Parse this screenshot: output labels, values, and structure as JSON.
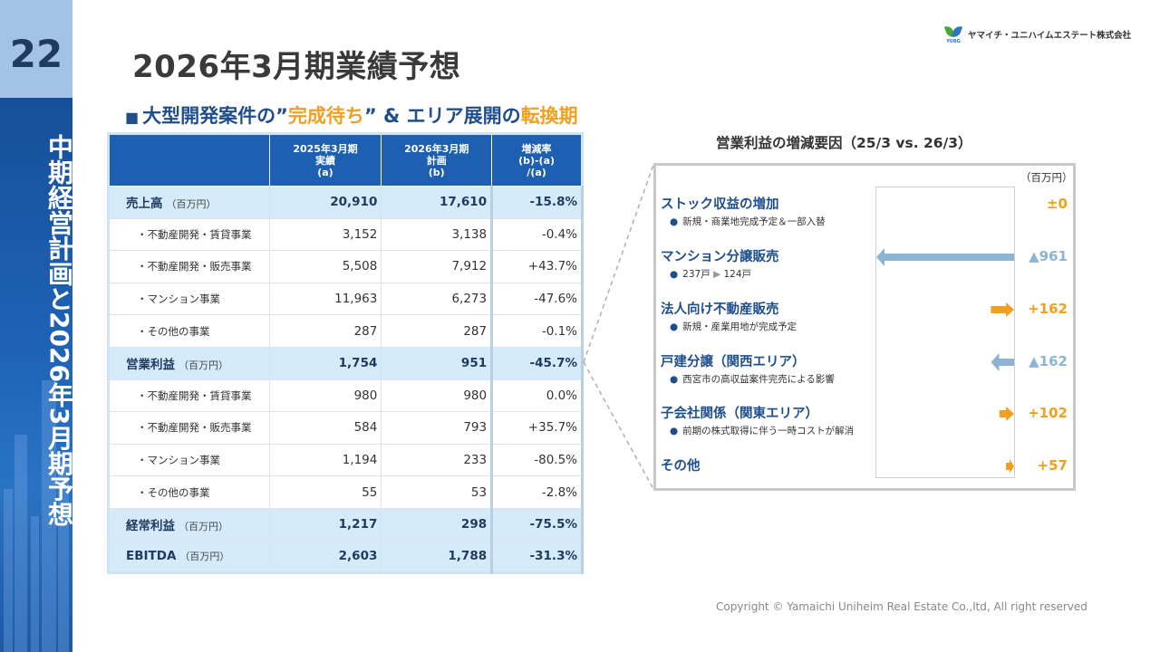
{
  "slide": {
    "page_number": "22",
    "side_title": "中期経営計画と2026年3月期予想",
    "title": "2026年3月期業績予想",
    "company": "ヤマイチ・ユニハイムエステート株式会社",
    "logo_text": "YUBG",
    "copyright": "Copyright © Yamaichi Uniheim Real Estate Co.,ltd, All right reserved"
  },
  "subtitle": {
    "marker": "■",
    "part1": "大型開発案件の”",
    "hl1": "完成待ち",
    "part2": "” & エリア展開の",
    "hl2": "転換期"
  },
  "table": {
    "headers": [
      {
        "l1": "2025年3月期",
        "l2": "実績",
        "l3": "(a)"
      },
      {
        "l1": "2026年3月期",
        "l2": "計画",
        "l3": "(b)"
      },
      {
        "l1": "増減率",
        "l2": "(b)-(a)",
        "l3": "/(a)"
      }
    ],
    "rows": [
      {
        "label": "売上高",
        "unit": "（百万円）",
        "a": "20,910",
        "b": "17,610",
        "r": "-15.8%"
      },
      {
        "label": "・不動産開発・賃貸事業",
        "a": "3,152",
        "b": "3,138",
        "r": "-0.4%"
      },
      {
        "label": "・不動産開発・販売事業",
        "a": "5,508",
        "b": "7,912",
        "r": "+43.7%"
      },
      {
        "label": "・マンション事業",
        "a": "11,963",
        "b": "6,273",
        "r": "-47.6%"
      },
      {
        "label": "・その他の事業",
        "a": "287",
        "b": "287",
        "r": "-0.1%"
      },
      {
        "label": "営業利益",
        "unit": "（百万円）",
        "a": "1,754",
        "b": "951",
        "r": "-45.7%"
      },
      {
        "label": "・不動産開発・賃貸事業",
        "a": "980",
        "b": "980",
        "r": "0.0%"
      },
      {
        "label": "・不動産開発・販売事業",
        "a": "584",
        "b": "793",
        "r": "+35.7%"
      },
      {
        "label": "・マンション事業",
        "a": "1,194",
        "b": "233",
        "r": "-80.5%"
      },
      {
        "label": "・その他の事業",
        "a": "55",
        "b": "53",
        "r": "-2.8%"
      },
      {
        "label": "経常利益",
        "unit": "（百万円）",
        "a": "1,217",
        "b": "298",
        "r": "-75.5%"
      },
      {
        "label": "EBITDA",
        "unit": "（百万円）",
        "a": "2,603",
        "b": "1,788",
        "r": "-31.3%"
      }
    ]
  },
  "factors": {
    "title": "営業利益の増減要因（25/3 vs. 26/3）",
    "unit": "（百万円）",
    "items": [
      {
        "name": "ストック収益の増加",
        "note": "新規・商業地完成予定＆一部入替",
        "value": "±0",
        "amount": 0
      },
      {
        "name": "マンション分譲販売",
        "note_a": "237戸",
        "note_arrow": "▶",
        "note_b": "124戸",
        "value": "▲961",
        "amount": -961
      },
      {
        "name": "法人向け不動産販売",
        "note": "新規・産業用地が完成予定",
        "value": "+162",
        "amount": 162
      },
      {
        "name": "戸建分譲（関西エリア）",
        "note": "西宮市の高収益案件完売による影響",
        "value": "▲162",
        "amount": -162
      },
      {
        "name": "子会社関係（関東エリア）",
        "note": "前期の株式取得に伴う一時コストが解消",
        "value": "+102",
        "amount": 102
      },
      {
        "name": "その他",
        "value": "+57",
        "amount": 57
      }
    ],
    "colors": {
      "positive": "#f0a020",
      "negative": "#8db4d2"
    }
  }
}
